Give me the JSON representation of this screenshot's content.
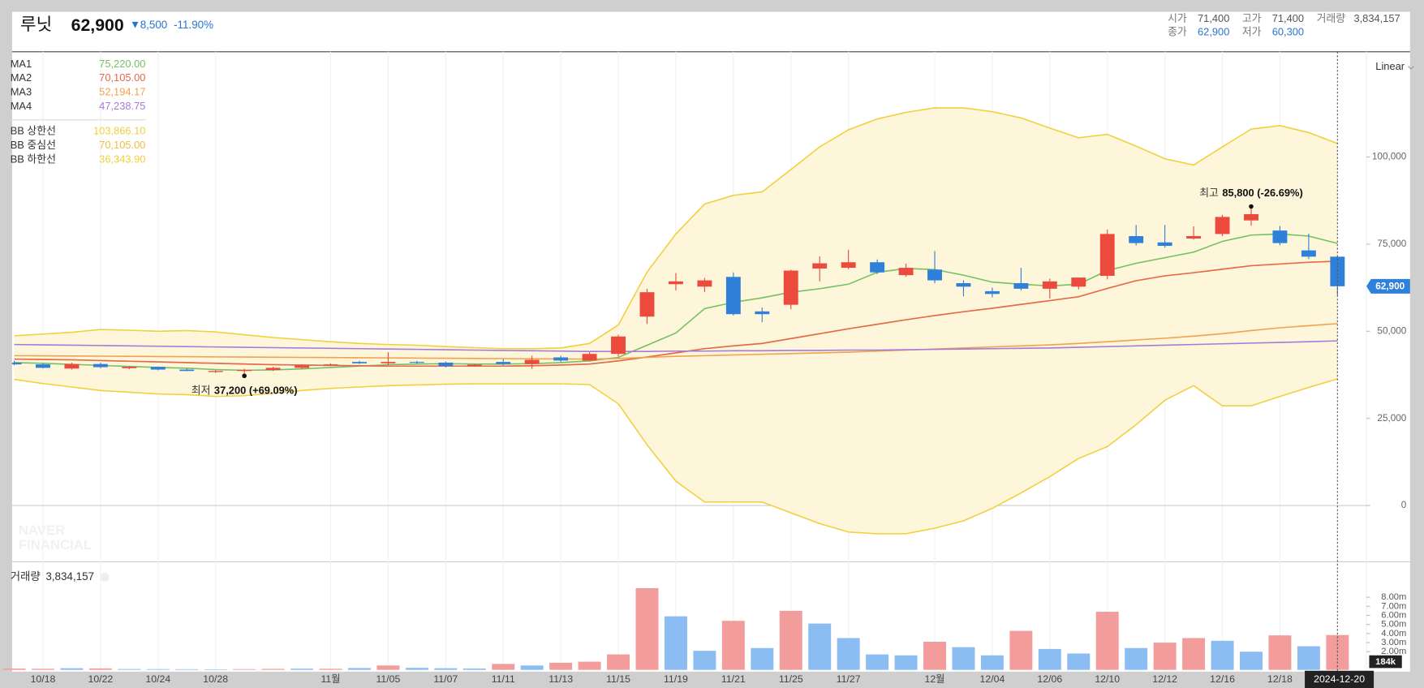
{
  "header": {
    "name": "루닛",
    "price": "62,900",
    "change": "8,500",
    "change_pct": "-11.90%",
    "stats": [
      {
        "label": "시가",
        "value": "71,400"
      },
      {
        "label": "고가",
        "value": "71,400"
      },
      {
        "label": "거래량",
        "value": "3,834,157"
      },
      {
        "label": "종가",
        "value": "62,900"
      },
      {
        "label": "저가",
        "value": "60,300"
      }
    ]
  },
  "scale_selector": "Linear",
  "watermark": [
    "NAVER",
    "FINANCIAL"
  ],
  "crosshair_date": "2024-12-20",
  "chart_data": {
    "type": "candlestick",
    "categories": [
      null,
      "10/18",
      null,
      "10/22",
      null,
      "10/24",
      null,
      "10/28",
      null,
      null,
      null,
      "11월",
      null,
      "11/05",
      null,
      "11/07",
      null,
      "11/11",
      null,
      "11/13",
      null,
      "11/15",
      null,
      "11/19",
      null,
      "11/21",
      null,
      "11/25",
      null,
      "11/27",
      null,
      null,
      "12월",
      null,
      "12/04",
      null,
      "12/06",
      null,
      "12/10",
      null,
      "12/12",
      null,
      "12/16",
      null,
      "12/18",
      null,
      null
    ],
    "ylim": [
      -15900,
      130200
    ],
    "yticks": [
      {
        "value": 0,
        "label": "0"
      },
      {
        "value": 25000,
        "label": "25,000"
      },
      {
        "value": 50000,
        "label": "50,000"
      },
      {
        "value": 75000,
        "label": "75,000"
      },
      {
        "value": 100000,
        "label": "100,000"
      }
    ],
    "candles": {
      "up_color": "#ec4a3c",
      "down_color": "#2f80d9",
      "open": [
        41000,
        40500,
        39300,
        40600,
        39400,
        39800,
        39000,
        38300,
        38600,
        38900,
        39500,
        40200,
        41200,
        40800,
        41200,
        41000,
        40000,
        41200,
        40600,
        42500,
        41600,
        43500,
        54200,
        63500,
        62800,
        65600,
        55700,
        57600,
        68000,
        68200,
        69800,
        66100,
        67700,
        63800,
        61500,
        63800,
        62200,
        62800,
        65900,
        77300,
        75500,
        76600,
        77900,
        81800,
        78900,
        73200,
        71400
      ],
      "high": [
        41500,
        40900,
        41000,
        41000,
        40000,
        39900,
        39300,
        38800,
        39200,
        39800,
        40400,
        40800,
        41500,
        44000,
        41500,
        41300,
        40600,
        42000,
        43000,
        43000,
        44000,
        49000,
        62200,
        66700,
        65300,
        66900,
        56800,
        67700,
        71500,
        73400,
        70600,
        69400,
        73000,
        64600,
        62500,
        68200,
        65100,
        65400,
        79200,
        80500,
        80500,
        80100,
        83400,
        85800,
        80200,
        78000,
        71400
      ],
      "low": [
        40200,
        39300,
        39000,
        39400,
        39100,
        38800,
        38500,
        38000,
        37200,
        38600,
        39300,
        40000,
        40600,
        40300,
        40700,
        39600,
        39800,
        40200,
        39200,
        41200,
        41400,
        42800,
        52100,
        61700,
        61200,
        54500,
        52600,
        56300,
        64300,
        67800,
        66400,
        65600,
        63800,
        60000,
        59700,
        61700,
        59400,
        62000,
        64900,
        74600,
        74000,
        76300,
        77300,
        80300,
        74700,
        70700,
        60300
      ],
      "close": [
        40500,
        39500,
        40600,
        39700,
        39800,
        39000,
        38600,
        38600,
        38900,
        39500,
        40200,
        40500,
        40800,
        41200,
        41000,
        40000,
        40400,
        40600,
        41800,
        41600,
        43500,
        48500,
        61200,
        64300,
        64600,
        54900,
        54900,
        67400,
        69500,
        69800,
        66900,
        68200,
        64600,
        62800,
        60700,
        62200,
        64300,
        65400,
        77900,
        75300,
        74500,
        77300,
        82800,
        83600,
        75300,
        71400,
        62900
      ]
    },
    "moving_averages": [
      {
        "name": "MA1",
        "color": "#74c062",
        "legend_value": "75,220.00",
        "values": [
          41000,
          40800,
          40500,
          40200,
          39900,
          39600,
          39400,
          39000,
          38800,
          38900,
          39200,
          39600,
          40000,
          40400,
          40600,
          40700,
          40600,
          40600,
          40700,
          41000,
          41500,
          42500,
          46000,
          49500,
          56500,
          58300,
          59600,
          61200,
          62200,
          63500,
          66900,
          68000,
          67700,
          66100,
          64100,
          63500,
          63000,
          63500,
          67400,
          69500,
          71100,
          72700,
          75800,
          77600,
          77900,
          77300,
          75220
        ]
      },
      {
        "name": "MA2",
        "color": "#e5684f",
        "legend_value": "70,105.00",
        "values": [
          42000,
          41900,
          41800,
          41600,
          41400,
          41200,
          41000,
          40800,
          40600,
          40400,
          40300,
          40200,
          40100,
          40000,
          40000,
          40000,
          40000,
          40000,
          40100,
          40300,
          40600,
          41500,
          42600,
          43800,
          45000,
          45800,
          46500,
          47900,
          49300,
          50700,
          52000,
          53300,
          54500,
          55600,
          56600,
          57700,
          58800,
          59900,
          62300,
          64500,
          65900,
          66800,
          67800,
          68800,
          69300,
          69800,
          70105
        ]
      },
      {
        "name": "MA3",
        "color": "#f0a24f",
        "legend_value": "52,194.17",
        "values": [
          43000,
          42950,
          42900,
          42850,
          42800,
          42750,
          42700,
          42650,
          42600,
          42550,
          42500,
          42450,
          42400,
          42350,
          42300,
          42250,
          42200,
          42150,
          42100,
          42050,
          42000,
          42200,
          42500,
          42800,
          43000,
          43200,
          43400,
          43600,
          43800,
          44000,
          44300,
          44600,
          44900,
          45200,
          45500,
          45800,
          46100,
          46500,
          47000,
          47500,
          48000,
          48600,
          49300,
          50200,
          51000,
          51600,
          52194.17
        ]
      },
      {
        "name": "MA4",
        "color": "#a57ad8",
        "legend_value": "47,238.75",
        "values": [
          46200,
          46100,
          46000,
          45900,
          45800,
          45700,
          45600,
          45500,
          45400,
          45300,
          45200,
          45100,
          45000,
          44900,
          44800,
          44700,
          44600,
          44500,
          44400,
          44300,
          44200,
          44200,
          44200,
          44300,
          44300,
          44400,
          44400,
          44500,
          44500,
          44600,
          44600,
          44700,
          44800,
          44900,
          45000,
          45100,
          45200,
          45400,
          45600,
          45800,
          46000,
          46200,
          46400,
          46600,
          46800,
          47000,
          47238.75
        ]
      }
    ],
    "bollinger": {
      "fill": "#fdf6da",
      "upper": {
        "name": "BB 상한선",
        "color": "#f2cf3c",
        "legend_value": "103,866.10",
        "values": [
          48700,
          49200,
          49700,
          50500,
          50300,
          50000,
          50200,
          49800,
          49000,
          48200,
          47600,
          47000,
          46500,
          46200,
          46000,
          45600,
          45300,
          45000,
          45000,
          45200,
          46500,
          51800,
          67000,
          77900,
          86500,
          89000,
          90000,
          96400,
          102900,
          107800,
          110900,
          112800,
          114100,
          114100,
          113000,
          111200,
          108300,
          105500,
          106500,
          103100,
          99500,
          97700,
          102900,
          108000,
          109000,
          107000,
          103866.1
        ]
      },
      "middle": {
        "name": "BB 중심선",
        "color": "#f0bd45",
        "legend_value": "70,105.00",
        "values": [
          42000,
          41900,
          41800,
          41600,
          41400,
          41200,
          41000,
          40800,
          40600,
          40400,
          40300,
          40200,
          40100,
          40000,
          40000,
          40000,
          40000,
          40000,
          40100,
          40300,
          40600,
          41500,
          42600,
          43800,
          45000,
          45800,
          46500,
          47900,
          49300,
          50700,
          52000,
          53300,
          54500,
          55600,
          56600,
          57700,
          58800,
          59900,
          62300,
          64500,
          65900,
          66800,
          67800,
          68800,
          69300,
          69800,
          70105
        ]
      },
      "lower": {
        "name": "BB 하한선",
        "color": "#f2cf3c",
        "legend_value": "36,343.90",
        "values": [
          36200,
          35000,
          34000,
          33000,
          32500,
          32000,
          31800,
          31300,
          31500,
          32200,
          33000,
          33600,
          34000,
          34400,
          34600,
          34800,
          34900,
          34900,
          34900,
          34900,
          34700,
          29200,
          17400,
          7000,
          1000,
          1000,
          1000,
          -2100,
          -5200,
          -7600,
          -8100,
          -8100,
          -6500,
          -4400,
          -800,
          3600,
          8300,
          13500,
          16900,
          23200,
          30200,
          34400,
          28600,
          28600,
          31300,
          33900,
          36343.9
        ]
      }
    },
    "annotations": {
      "high": {
        "label": "최고",
        "text": "85,800 (-26.69%)"
      },
      "low": {
        "label": "최저",
        "text": "37,200 (+69.09%)"
      }
    },
    "volume": {
      "ylim": [
        0,
        11800000
      ],
      "yticks": [
        {
          "value": 2000000,
          "label": "2.00m"
        },
        {
          "value": 3000000,
          "label": "3.00m"
        },
        {
          "value": 4000000,
          "label": "4.00m"
        },
        {
          "value": 5000000,
          "label": "5.00m"
        },
        {
          "value": 6000000,
          "label": "6.00m"
        },
        {
          "value": 7000000,
          "label": "7.00m"
        },
        {
          "value": 8000000,
          "label": "8.00m"
        }
      ],
      "cursor_label": "184k",
      "values": [
        150000,
        120000,
        180000,
        160000,
        90000,
        80000,
        70000,
        60000,
        80000,
        110000,
        130000,
        120000,
        200000,
        480000,
        220000,
        180000,
        150000,
        650000,
        480000,
        780000,
        900000,
        1700000,
        9000000,
        5900000,
        2100000,
        5400000,
        2400000,
        6500000,
        5100000,
        3500000,
        1700000,
        1600000,
        3100000,
        2500000,
        1600000,
        4300000,
        2300000,
        1800000,
        6400000,
        2400000,
        3000000,
        3500000,
        3200000,
        2000000,
        3800000,
        2600000,
        3834157
      ],
      "colors": [
        "#f39c9c",
        "#f39c9c",
        "#8cbdf2",
        "#f39c9c",
        "#8cbdf2",
        "#8cbdf2",
        "#8cbdf2",
        "#8cbdf2",
        "#f39c9c",
        "#f39c9c",
        "#8cbdf2",
        "#f39c9c",
        "#8cbdf2",
        "#f39c9c",
        "#8cbdf2",
        "#8cbdf2",
        "#8cbdf2",
        "#f39c9c",
        "#8cbdf2",
        "#f39c9c",
        "#f39c9c",
        "#f39c9c",
        "#f39c9c",
        "#8cbdf2",
        "#8cbdf2",
        "#f39c9c",
        "#8cbdf2",
        "#f39c9c",
        "#8cbdf2",
        "#8cbdf2",
        "#8cbdf2",
        "#8cbdf2",
        "#f39c9c",
        "#8cbdf2",
        "#8cbdf2",
        "#f39c9c",
        "#8cbdf2",
        "#8cbdf2",
        "#f39c9c",
        "#8cbdf2",
        "#f39c9c",
        "#f39c9c",
        "#8cbdf2",
        "#8cbdf2",
        "#f39c9c",
        "#8cbdf2",
        "#f39c9c"
      ]
    }
  }
}
